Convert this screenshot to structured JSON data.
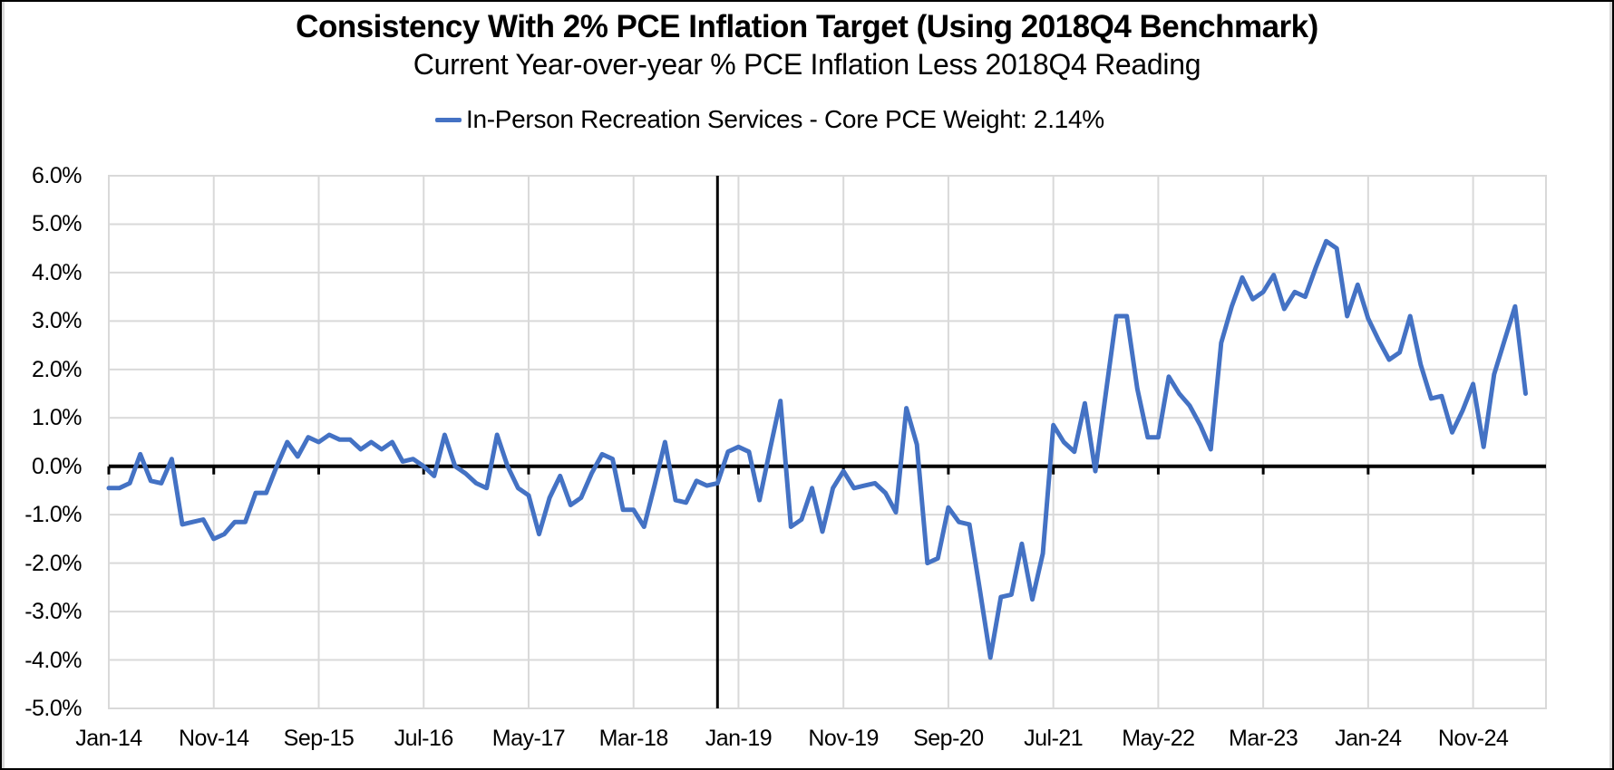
{
  "chart_data": {
    "type": "line",
    "title": "Consistency With 2% PCE Inflation Target (Using 2018Q4 Benchmark)",
    "subtitle": "Current Year-over-year % PCE Inflation Less 2018Q4 Reading",
    "legend": [
      {
        "label": "In-Person Recreation Services - Core PCE Weight: 2.14%",
        "color": "#4472C4"
      }
    ],
    "legend_position": "top",
    "grid": true,
    "ylabel": "",
    "xlabel": "",
    "y_unit": "percent",
    "ylim": [
      -5.0,
      6.0
    ],
    "y_tick_step": 1.0,
    "y_tick_labels": [
      "6.0%",
      "5.0%",
      "4.0%",
      "3.0%",
      "2.0%",
      "1.0%",
      "0.0%",
      "-1.0%",
      "-2.0%",
      "-3.0%",
      "-4.0%",
      "-5.0%"
    ],
    "x_tick_labels": [
      "Jan-14",
      "Nov-14",
      "Sep-15",
      "Jul-16",
      "May-17",
      "Mar-18",
      "Jan-19",
      "Nov-19",
      "Sep-20",
      "Jul-21",
      "May-22",
      "Mar-23",
      "Jan-24",
      "Nov-24"
    ],
    "x_tick_interval_months": 10,
    "frequency": "monthly",
    "start_month": "Jan-14",
    "end_month": "Apr-25",
    "zero_axis_emphasized": true,
    "benchmark_vline": {
      "position_month": "Nov-18",
      "month_index": 58,
      "color": "#000000"
    },
    "series": [
      {
        "name": "In-Person Recreation Services - Core PCE Weight: 2.14%",
        "color": "#4472C4",
        "values": [
          -0.45,
          -0.45,
          -0.35,
          0.25,
          -0.3,
          -0.35,
          0.15,
          -1.2,
          -1.15,
          -1.1,
          -1.5,
          -1.4,
          -1.15,
          -1.15,
          -0.55,
          -0.55,
          0.0,
          0.5,
          0.2,
          0.6,
          0.5,
          0.65,
          0.55,
          0.55,
          0.35,
          0.5,
          0.35,
          0.5,
          0.1,
          0.15,
          0.0,
          -0.2,
          0.65,
          0.0,
          -0.15,
          -0.35,
          -0.45,
          0.65,
          0.0,
          -0.45,
          -0.6,
          -1.4,
          -0.65,
          -0.2,
          -0.8,
          -0.65,
          -0.15,
          0.25,
          0.15,
          -0.9,
          -0.9,
          -1.25,
          -0.4,
          0.5,
          -0.7,
          -0.75,
          -0.3,
          -0.4,
          -0.35,
          0.3,
          0.4,
          0.3,
          -0.7,
          0.35,
          1.35,
          -1.25,
          -1.1,
          -0.45,
          -1.35,
          -0.45,
          -0.1,
          -0.45,
          -0.4,
          -0.35,
          -0.55,
          -0.95,
          1.2,
          0.45,
          -2.0,
          -1.9,
          -0.85,
          -1.15,
          -1.2,
          -2.55,
          -3.95,
          -2.7,
          -2.65,
          -1.6,
          -2.75,
          -1.8,
          0.85,
          0.5,
          0.3,
          1.3,
          -0.1,
          1.5,
          3.1,
          3.1,
          1.6,
          0.6,
          0.6,
          1.85,
          1.5,
          1.25,
          0.85,
          0.35,
          2.55,
          3.3,
          3.9,
          3.45,
          3.6,
          3.95,
          3.25,
          3.6,
          3.5,
          4.1,
          4.65,
          4.5,
          3.1,
          3.75,
          3.05,
          2.6,
          2.2,
          2.35,
          3.1,
          2.1,
          1.4,
          1.45,
          0.7,
          1.15,
          1.7,
          0.4,
          1.9,
          2.6,
          3.3,
          1.5
        ]
      }
    ]
  },
  "colors": {
    "accent_line": "#4472C4",
    "grid": "#D9D9D9",
    "axis": "#000000",
    "text": "#000000",
    "background": "#FFFFFF"
  }
}
